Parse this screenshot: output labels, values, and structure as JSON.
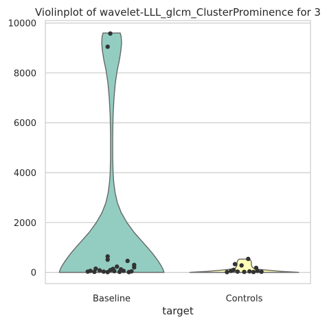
{
  "chart_data": {
    "type": "violin",
    "title": "Violinplot of wavelet-LLL_glcm_ClusterProminence for 3",
    "xlabel": "target",
    "ylabel": "",
    "categories": [
      "Baseline",
      "Controls"
    ],
    "ylim": [
      -450,
      10100
    ],
    "yticks": [
      0,
      2000,
      4000,
      6000,
      8000,
      10000
    ],
    "grid": true,
    "colors": {
      "Baseline": "#93cdc1",
      "Controls": "#ffffb8",
      "outline": "#666666",
      "points": "#333333"
    },
    "violins": [
      {
        "category": "Baseline",
        "y_range": [
          0,
          9600
        ],
        "profile": [
          {
            "y": 0,
            "hw": 0.395
          },
          {
            "y": 150,
            "hw": 0.385
          },
          {
            "y": 300,
            "hw": 0.37
          },
          {
            "y": 500,
            "hw": 0.345
          },
          {
            "y": 750,
            "hw": 0.31
          },
          {
            "y": 1000,
            "hw": 0.27
          },
          {
            "y": 1300,
            "hw": 0.22
          },
          {
            "y": 1600,
            "hw": 0.17
          },
          {
            "y": 2000,
            "hw": 0.115
          },
          {
            "y": 2400,
            "hw": 0.072
          },
          {
            "y": 2800,
            "hw": 0.043
          },
          {
            "y": 3200,
            "hw": 0.026
          },
          {
            "y": 3600,
            "hw": 0.016
          },
          {
            "y": 4000,
            "hw": 0.011
          },
          {
            "y": 4600,
            "hw": 0.008
          },
          {
            "y": 5500,
            "hw": 0.008
          },
          {
            "y": 6300,
            "hw": 0.011
          },
          {
            "y": 7000,
            "hw": 0.018
          },
          {
            "y": 7600,
            "hw": 0.028
          },
          {
            "y": 8100,
            "hw": 0.042
          },
          {
            "y": 8500,
            "hw": 0.058
          },
          {
            "y": 8900,
            "hw": 0.07
          },
          {
            "y": 9200,
            "hw": 0.075
          },
          {
            "y": 9450,
            "hw": 0.072
          },
          {
            "y": 9600,
            "hw": 0.065
          }
        ],
        "points": [
          {
            "x": -0.01,
            "y": 9580
          },
          {
            "x": -0.03,
            "y": 9050
          },
          {
            "x": -0.03,
            "y": 640
          },
          {
            "x": -0.03,
            "y": 510
          },
          {
            "x": 0.12,
            "y": 460
          },
          {
            "x": 0.17,
            "y": 300
          },
          {
            "x": 0.17,
            "y": 200
          },
          {
            "x": 0.04,
            "y": 230
          },
          {
            "x": 0.01,
            "y": 140
          },
          {
            "x": -0.12,
            "y": 150
          },
          {
            "x": -0.09,
            "y": 80
          },
          {
            "x": -0.16,
            "y": 60
          },
          {
            "x": -0.13,
            "y": 20
          },
          {
            "x": -0.06,
            "y": 30
          },
          {
            "x": -0.03,
            "y": 10
          },
          {
            "x": 0.02,
            "y": 50
          },
          {
            "x": 0.06,
            "y": 20
          },
          {
            "x": 0.09,
            "y": 60
          },
          {
            "x": 0.13,
            "y": 10
          },
          {
            "x": 0.15,
            "y": 40
          },
          {
            "x": -0.18,
            "y": 30
          },
          {
            "x": -0.01,
            "y": 90
          },
          {
            "x": 0.07,
            "y": 120
          }
        ]
      },
      {
        "category": "Controls",
        "y_range": [
          0,
          530
        ],
        "profile": [
          {
            "y": 0,
            "hw": 0.41
          },
          {
            "y": 40,
            "hw": 0.28
          },
          {
            "y": 90,
            "hw": 0.17
          },
          {
            "y": 130,
            "hw": 0.1
          },
          {
            "y": 170,
            "hw": 0.068
          },
          {
            "y": 230,
            "hw": 0.058
          },
          {
            "y": 300,
            "hw": 0.054
          },
          {
            "y": 380,
            "hw": 0.054
          },
          {
            "y": 450,
            "hw": 0.052
          },
          {
            "y": 500,
            "hw": 0.045
          },
          {
            "y": 530,
            "hw": 0.038
          }
        ],
        "points": [
          {
            "x": 0.03,
            "y": 540
          },
          {
            "x": -0.07,
            "y": 330
          },
          {
            "x": -0.02,
            "y": 280
          },
          {
            "x": 0.09,
            "y": 180
          },
          {
            "x": -0.1,
            "y": 60
          },
          {
            "x": -0.05,
            "y": 30
          },
          {
            "x": 0.0,
            "y": 20
          },
          {
            "x": 0.04,
            "y": 40
          },
          {
            "x": 0.07,
            "y": 15
          },
          {
            "x": 0.1,
            "y": 60
          },
          {
            "x": -0.13,
            "y": 10
          },
          {
            "x": 0.13,
            "y": 25
          },
          {
            "x": -0.08,
            "y": 100
          }
        ]
      }
    ]
  }
}
